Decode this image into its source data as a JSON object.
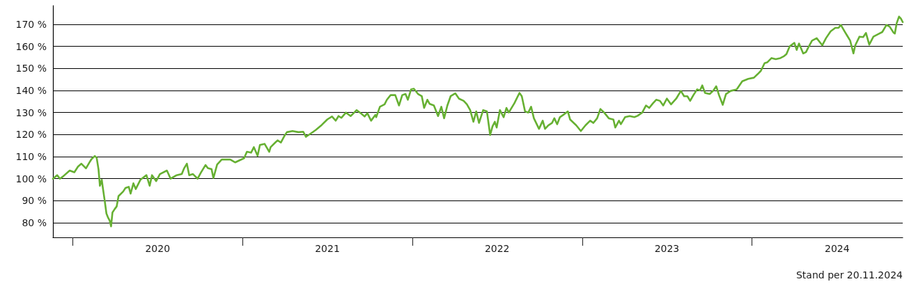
{
  "chart_data": {
    "type": "line",
    "x": [
      "2019-11-20",
      "2019-11-29",
      "2019-12-05",
      "2019-12-11",
      "2019-12-26",
      "2020-01-05",
      "2020-01-13",
      "2020-01-20",
      "2020-01-30",
      "2020-02-08",
      "2020-02-11",
      "2020-02-18",
      "2020-02-22",
      "2020-02-26",
      "2020-02-29",
      "2020-03-04",
      "2020-03-06",
      "2020-03-10",
      "2020-03-14",
      "2020-03-17",
      "2020-03-21",
      "2020-03-24",
      "2020-03-27",
      "2020-04-01",
      "2020-04-05",
      "2020-04-09",
      "2020-04-19",
      "2020-04-24",
      "2020-05-01",
      "2020-05-05",
      "2020-05-11",
      "2020-05-16",
      "2020-05-26",
      "2020-06-08",
      "2020-06-15",
      "2020-06-20",
      "2020-06-29",
      "2020-07-07",
      "2020-07-22",
      "2020-07-30",
      "2020-08-12",
      "2020-08-23",
      "2020-08-28",
      "2020-09-03",
      "2020-09-08",
      "2020-09-16",
      "2020-09-26",
      "2020-10-03",
      "2020-10-13",
      "2020-10-18",
      "2020-10-26",
      "2020-10-30",
      "2020-11-07",
      "2020-11-17",
      "2020-12-05",
      "2020-12-16",
      "2020-12-27",
      "2021-01-04",
      "2021-01-10",
      "2021-01-19",
      "2021-01-25",
      "2021-02-02",
      "2021-02-07",
      "2021-02-17",
      "2021-02-27",
      "2021-03-02",
      "2021-03-12",
      "2021-03-17",
      "2021-03-24",
      "2021-04-01",
      "2021-04-06",
      "2021-04-18",
      "2021-05-01",
      "2021-05-11",
      "2021-05-17",
      "2021-05-28",
      "2021-06-07",
      "2021-06-20",
      "2021-07-02",
      "2021-07-12",
      "2021-07-20",
      "2021-07-26",
      "2021-08-01",
      "2021-08-11",
      "2021-08-21",
      "2021-09-03",
      "2021-09-13",
      "2021-09-20",
      "2021-09-26",
      "2021-10-04",
      "2021-10-13",
      "2021-10-15",
      "2021-10-23",
      "2021-11-02",
      "2021-11-07",
      "2021-11-15",
      "2021-11-25",
      "2021-12-03",
      "2021-12-10",
      "2021-12-17",
      "2021-12-22",
      "2021-12-29",
      "2022-01-04",
      "2022-01-13",
      "2022-01-21",
      "2022-01-26",
      "2022-02-02",
      "2022-02-07",
      "2022-02-16",
      "2022-02-25",
      "2022-03-04",
      "2022-03-10",
      "2022-03-17",
      "2022-03-24",
      "2022-04-03",
      "2022-04-11",
      "2022-04-21",
      "2022-04-28",
      "2022-05-05",
      "2022-05-12",
      "2022-05-18",
      "2022-05-24",
      "2022-06-02",
      "2022-06-10",
      "2022-06-17",
      "2022-06-22",
      "2022-06-27",
      "2022-07-01",
      "2022-07-08",
      "2022-07-16",
      "2022-07-22",
      "2022-07-27",
      "2022-08-08",
      "2022-08-19",
      "2022-08-24",
      "2022-08-31",
      "2022-09-07",
      "2022-09-13",
      "2022-09-19",
      "2022-09-30",
      "2022-10-08",
      "2022-10-13",
      "2022-10-20",
      "2022-10-28",
      "2022-11-02",
      "2022-11-08",
      "2022-11-14",
      "2022-11-21",
      "2022-12-01",
      "2022-12-06",
      "2022-12-19",
      "2022-12-29",
      "2023-01-08",
      "2023-01-18",
      "2023-01-25",
      "2023-02-02",
      "2023-02-09",
      "2023-02-17",
      "2023-02-27",
      "2023-03-09",
      "2023-03-13",
      "2023-03-21",
      "2023-03-25",
      "2023-04-03",
      "2023-04-13",
      "2023-04-23",
      "2023-04-30",
      "2023-05-10",
      "2023-05-18",
      "2023-05-25",
      "2023-06-02",
      "2023-06-09",
      "2023-06-17",
      "2023-06-24",
      "2023-07-02",
      "2023-07-11",
      "2023-07-22",
      "2023-08-01",
      "2023-08-08",
      "2023-08-15",
      "2023-08-21",
      "2023-08-28",
      "2023-09-05",
      "2023-09-11",
      "2023-09-16",
      "2023-09-22",
      "2023-10-02",
      "2023-10-10",
      "2023-10-16",
      "2023-10-22",
      "2023-10-30",
      "2023-11-06",
      "2023-11-16",
      "2023-11-29",
      "2023-12-11",
      "2023-12-24",
      "2024-01-05",
      "2024-01-13",
      "2024-01-20",
      "2024-01-28",
      "2024-02-03",
      "2024-02-12",
      "2024-02-21",
      "2024-03-02",
      "2024-03-10",
      "2024-03-15",
      "2024-03-22",
      "2024-04-01",
      "2024-04-06",
      "2024-04-11",
      "2024-04-20",
      "2024-04-26",
      "2024-05-01",
      "2024-05-09",
      "2024-05-19",
      "2024-05-31",
      "2024-06-08",
      "2024-06-18",
      "2024-06-28",
      "2024-07-05",
      "2024-07-10",
      "2024-07-18",
      "2024-07-24",
      "2024-07-30",
      "2024-08-06",
      "2024-08-10",
      "2024-08-19",
      "2024-08-27",
      "2024-09-02",
      "2024-09-09",
      "2024-09-18",
      "2024-09-28",
      "2024-10-07",
      "2024-10-16",
      "2024-10-23",
      "2024-10-31",
      "2024-11-03",
      "2024-11-07",
      "2024-11-12",
      "2024-11-16",
      "2024-11-20"
    ],
    "series": [
      {
        "color": "#66b032",
        "values": [
          100,
          101.6,
          100,
          100.9,
          103.7,
          102.9,
          105.5,
          106.8,
          104.7,
          107.9,
          108.9,
          110.3,
          109.5,
          104.2,
          96.8,
          99.5,
          96.3,
          90.5,
          84.2,
          82.6,
          81,
          78.4,
          84.7,
          86.3,
          87.4,
          92.1,
          94.2,
          95.8,
          96.3,
          93.2,
          97.9,
          95.3,
          99.5,
          101.6,
          96.8,
          101.6,
          98.9,
          102.1,
          103.7,
          100,
          101.6,
          102.1,
          104.7,
          106.8,
          101.6,
          102.1,
          100,
          102.7,
          106.2,
          104.8,
          104.3,
          100.3,
          106.4,
          108.7,
          108.7,
          107.4,
          108.5,
          109.3,
          112.2,
          111.8,
          114.3,
          110.4,
          115.3,
          115.8,
          112.2,
          114.3,
          116.4,
          117.4,
          116.4,
          119.5,
          121.1,
          121.6,
          121.1,
          121.3,
          119,
          120.6,
          122.1,
          124.4,
          126.9,
          128.2,
          126.3,
          128.4,
          127.6,
          130,
          128.4,
          131.1,
          129.5,
          128.2,
          129.7,
          126.3,
          128.9,
          127.9,
          132.6,
          133.7,
          135.8,
          137.9,
          137.9,
          133.2,
          137.9,
          138.4,
          135.8,
          140.5,
          140.8,
          138.4,
          137.4,
          132.1,
          135.8,
          133.9,
          133.2,
          128.4,
          132.6,
          127.4,
          133.2,
          137.4,
          138.7,
          136.3,
          135.3,
          133.7,
          131.1,
          125.8,
          130.5,
          125.3,
          131.1,
          130.5,
          119.8,
          123.7,
          125.8,
          123.2,
          131.1,
          127.9,
          132.1,
          130,
          134.2,
          138.9,
          137.4,
          130.5,
          130,
          132.6,
          127.4,
          122.6,
          126.3,
          122.6,
          124.2,
          125.3,
          127.4,
          124.7,
          127.9,
          128.9,
          130.5,
          126.8,
          124.2,
          121.6,
          124.2,
          126.3,
          125.3,
          127.4,
          131.6,
          130,
          127.4,
          126.8,
          123.2,
          126.3,
          124.7,
          127.9,
          128.4,
          127.9,
          128.5,
          130,
          133.2,
          132.1,
          134.2,
          135.8,
          135.3,
          133.2,
          136.3,
          133.7,
          136.3,
          139.8,
          137.4,
          137.4,
          135.3,
          137.9,
          140.5,
          140,
          142.3,
          138.9,
          138.4,
          140,
          141.9,
          137.9,
          133.5,
          138.4,
          139.8,
          140.5,
          144.2,
          145.3,
          145.8,
          147.4,
          148.9,
          152.4,
          152.8,
          154.7,
          154.2,
          154.7,
          155.6,
          156.5,
          160,
          161.6,
          158.4,
          161.3,
          156.8,
          157.4,
          159.5,
          162.6,
          163.7,
          160.5,
          163.7,
          166.8,
          168.4,
          168.4,
          169.7,
          166.8,
          164.7,
          162.6,
          156.8,
          160.5,
          164.4,
          164.2,
          166.1,
          160.8,
          164.4,
          165.5,
          166.5,
          169.7,
          168.9,
          166.3,
          165.8,
          170.5,
          173.5,
          172.6,
          171
        ]
      }
    ],
    "xlim": [
      "2019-11-20",
      "2024-11-20"
    ],
    "xticks": [
      {
        "value": "2020-01-01",
        "label": null
      },
      {
        "value": "2020-07-02",
        "label": "2020"
      },
      {
        "value": "2021-01-01",
        "label": null
      },
      {
        "value": "2021-07-02",
        "label": "2021"
      },
      {
        "value": "2022-01-01",
        "label": null
      },
      {
        "value": "2022-07-02",
        "label": "2022"
      },
      {
        "value": "2023-01-01",
        "label": null
      },
      {
        "value": "2023-07-02",
        "label": "2023"
      },
      {
        "value": "2024-01-01",
        "label": null
      },
      {
        "value": "2024-07-02",
        "label": "2024"
      }
    ],
    "ylim": [
      73.4,
      178.5
    ],
    "yticks": [
      {
        "value": 80,
        "label": "80 %"
      },
      {
        "value": 90,
        "label": "90 %"
      },
      {
        "value": 100,
        "label": "100 %"
      },
      {
        "value": 110,
        "label": "110 %"
      },
      {
        "value": 120,
        "label": "120 %"
      },
      {
        "value": 130,
        "label": "130 %"
      },
      {
        "value": 140,
        "label": "140 %"
      },
      {
        "value": 150,
        "label": "150 %"
      },
      {
        "value": 160,
        "label": "160 %"
      },
      {
        "value": 170,
        "label": "170 %"
      }
    ],
    "grid": "y",
    "annotations": [
      "Stand per 20.11.2024"
    ]
  }
}
